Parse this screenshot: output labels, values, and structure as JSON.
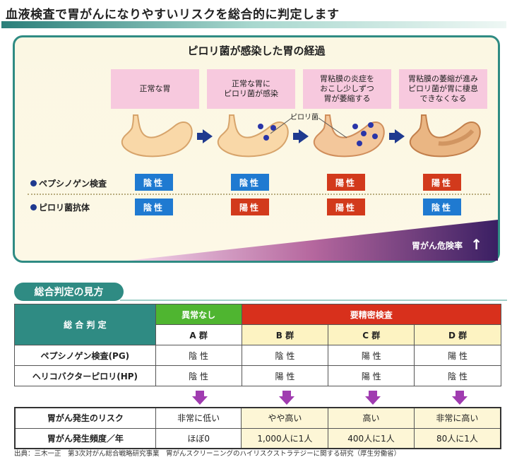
{
  "title": "血液検査で胃がんになりやすいリスクを総合的に判定します",
  "panel": {
    "title": "ピロリ菌が感染した胃の経過",
    "stages": [
      {
        "text": "正常な胃"
      },
      {
        "text": "正常な胃に\nピロリ菌が感染"
      },
      {
        "text": "胃粘膜の炎症を\nおこし少しずつ\n胃が萎縮する"
      },
      {
        "text": "胃粘膜の萎縮が進み\nピロリ菌が胃に棲息\nできなくなる"
      }
    ],
    "pylori_label": "ピロリ菌",
    "rows": [
      {
        "label": "ペプシノゲン検査",
        "results": [
          "陰性",
          "陰性",
          "陽性",
          "陽性"
        ]
      },
      {
        "label": "ピロリ菌抗体",
        "results": [
          "陰性",
          "陽性",
          "陽性",
          "陰性"
        ]
      }
    ],
    "risk_label": "胃がん危険率",
    "risk_arrow": "↑"
  },
  "section_title": "総合判定の見方",
  "table": {
    "header_label": "総 合 判 定",
    "group_normal": "異常なし",
    "group_detailed": "要精密検査",
    "groups": [
      "A 群",
      "B 群",
      "C 群",
      "D 群"
    ],
    "rows": [
      {
        "label": "ペプシノゲン検査(PG)",
        "values": [
          "陰 性",
          "陰 性",
          "陽 性",
          "陽 性"
        ]
      },
      {
        "label": "ヘリコバクターピロリ(HP)",
        "values": [
          "陰 性",
          "陽 性",
          "陽 性",
          "陰 性"
        ]
      }
    ],
    "risk_rows": [
      {
        "label": "胃がん発生のリスク",
        "values": [
          "非常に低い",
          "やや高い",
          "高い",
          "非常に高い"
        ]
      },
      {
        "label": "胃がん発生頻度／年",
        "values": [
          "ほぼ0",
          "1,000人に1人",
          "400人に1人",
          "80人に1人"
        ]
      }
    ]
  },
  "source": "出典：三木一正　第3次対がん総合戦略研究事業　胃がんスクリーニングのハイリスクストラテジーに関する研究（厚生労働省）",
  "colors": {
    "teal": "#2f8b83",
    "negative": "#1f7ad1",
    "positive": "#d23a1c",
    "arrow": "#1f3a8f"
  }
}
